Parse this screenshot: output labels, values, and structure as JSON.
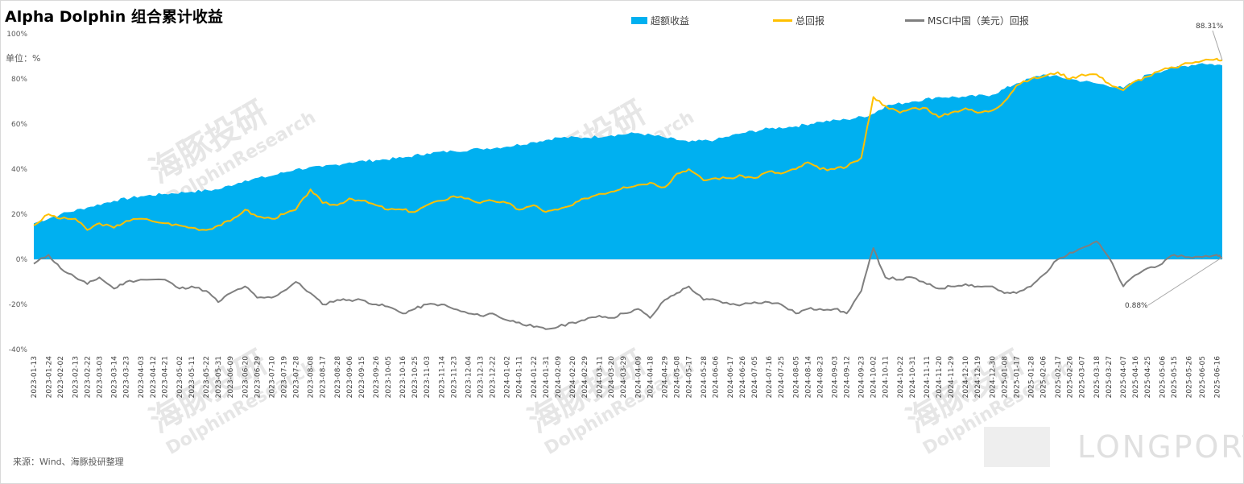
{
  "title": "Alpha Dolphin 组合累计收益",
  "unit_label": "单位：%",
  "source": "来源：Wind、海豚投研整理",
  "watermark": {
    "name": "海豚投研",
    "brand": "DolphinResearch"
  },
  "logo": {
    "text": "LONGPORT"
  },
  "legend": {
    "excess": "超额收益",
    "total": "总回报",
    "msci": "MSCI中国（美元）回报"
  },
  "colors": {
    "excess": "#00b0f0",
    "total": "#ffc000",
    "msci": "#7f7f7f"
  },
  "annotations": [
    {
      "series": "总回报",
      "text": "88.31%"
    },
    {
      "series": "MSCI中国（美元）回报",
      "text": "0.88%"
    }
  ],
  "chart_data": {
    "type": "area",
    "title": "Alpha Dolphin 组合累计收益",
    "ylabel": "单位：%",
    "ylim": [
      -40,
      100
    ],
    "yticks": [
      -40,
      -20,
      0,
      20,
      40,
      60,
      80,
      100
    ],
    "ytick_labels": [
      "-40%",
      "-20%",
      "0%",
      "20%",
      "40%",
      "60%",
      "80%",
      "100%"
    ],
    "grid": false,
    "legend_position": "top",
    "x_tick_labels": [
      "2023-01-13",
      "2023-01-24",
      "2023-02-02",
      "2023-02-13",
      "2023-02-22",
      "2023-03-03",
      "2023-03-14",
      "2023-03-23",
      "2023-04-03",
      "2023-04-12",
      "2023-04-21",
      "2023-05-02",
      "2023-05-11",
      "2023-05-22",
      "2023-05-31",
      "2023-06-09",
      "2023-06-20",
      "2023-06-29",
      "2023-07-10",
      "2023-07-19",
      "2023-07-28",
      "2023-08-08",
      "2023-08-17",
      "2023-08-28",
      "2023-09-06",
      "2023-09-15",
      "2023-09-26",
      "2023-10-05",
      "2023-10-16",
      "2023-10-25",
      "2023-11-03",
      "2023-11-14",
      "2023-11-23",
      "2023-12-04",
      "2023-12-13",
      "2023-12-22",
      "2024-01-02",
      "2024-01-11",
      "2024-01-22",
      "2024-01-31",
      "2024-02-09",
      "2024-02-20",
      "2024-02-29",
      "2024-03-11",
      "2024-03-20",
      "2024-03-29",
      "2024-04-09",
      "2024-04-18",
      "2024-04-29",
      "2024-05-08",
      "2024-05-17",
      "2024-05-28",
      "2024-06-06",
      "2024-06-17",
      "2024-06-26",
      "2024-07-05",
      "2024-07-16",
      "2024-07-25",
      "2024-08-05",
      "2024-08-14",
      "2024-08-23",
      "2024-09-03",
      "2024-09-12",
      "2024-09-23",
      "2024-10-02",
      "2024-10-11",
      "2024-10-22",
      "2024-10-31",
      "2024-11-11",
      "2024-11-20",
      "2024-11-29",
      "2024-12-10",
      "2024-12-19",
      "2024-12-30",
      "2025-01-08",
      "2025-01-17",
      "2025-01-28",
      "2025-02-06",
      "2025-02-17",
      "2025-02-26",
      "2025-03-07",
      "2025-03-18",
      "2025-03-27",
      "2025-04-07",
      "2025-04-16",
      "2025-04-25",
      "2025-05-06",
      "2025-05-15",
      "2025-05-26",
      "2025-06-05",
      "2025-06-16"
    ],
    "series": [
      {
        "name": "超额收益",
        "type": "area",
        "x": [
          "2023-01-13",
          "2023-02-02",
          "2023-02-22",
          "2023-03-14",
          "2023-04-03",
          "2023-04-21",
          "2023-05-11",
          "2023-05-31",
          "2023-06-20",
          "2023-07-10",
          "2023-07-28",
          "2023-08-17",
          "2023-09-06",
          "2023-09-26",
          "2023-10-16",
          "2023-11-03",
          "2023-11-23",
          "2023-12-13",
          "2024-01-02",
          "2024-01-22",
          "2024-02-09",
          "2024-02-29",
          "2024-03-20",
          "2024-04-09",
          "2024-04-29",
          "2024-05-17",
          "2024-06-06",
          "2024-06-26",
          "2024-07-16",
          "2024-08-05",
          "2024-08-23",
          "2024-09-12",
          "2024-09-30",
          "2024-10-11",
          "2024-10-31",
          "2024-11-20",
          "2024-12-10",
          "2024-12-30",
          "2025-01-17",
          "2025-02-06",
          "2025-02-26",
          "2025-03-18",
          "2025-04-07",
          "2025-04-25",
          "2025-05-15",
          "2025-06-05",
          "2025-06-20"
        ],
        "values": [
          16,
          20,
          23,
          26,
          28,
          29,
          30,
          31,
          35,
          37,
          40,
          41,
          43,
          44,
          45,
          47,
          48,
          49,
          50,
          52,
          54,
          54,
          55,
          56,
          54,
          52,
          53,
          56,
          58,
          59,
          61,
          62,
          64,
          68,
          70,
          72,
          72,
          73,
          78,
          82,
          80,
          78,
          76,
          82,
          85,
          87,
          86
        ]
      },
      {
        "name": "总回报",
        "type": "line",
        "x": [
          "2023-01-13",
          "2023-01-24",
          "2023-02-02",
          "2023-02-13",
          "2023-02-22",
          "2023-03-03",
          "2023-03-14",
          "2023-03-23",
          "2023-04-03",
          "2023-04-21",
          "2023-05-02",
          "2023-05-11",
          "2023-05-22",
          "2023-05-31",
          "2023-06-09",
          "2023-06-20",
          "2023-06-29",
          "2023-07-10",
          "2023-07-19",
          "2023-07-28",
          "2023-08-08",
          "2023-08-17",
          "2023-08-28",
          "2023-09-06",
          "2023-09-15",
          "2023-09-26",
          "2023-10-05",
          "2023-10-16",
          "2023-10-25",
          "2023-11-03",
          "2023-11-14",
          "2023-11-23",
          "2023-12-04",
          "2023-12-13",
          "2023-12-22",
          "2024-01-02",
          "2024-01-11",
          "2024-01-22",
          "2024-01-31",
          "2024-02-09",
          "2024-02-20",
          "2024-02-29",
          "2024-03-11",
          "2024-03-20",
          "2024-03-29",
          "2024-04-09",
          "2024-04-18",
          "2024-04-29",
          "2024-05-08",
          "2024-05-17",
          "2024-05-28",
          "2024-06-06",
          "2024-06-17",
          "2024-06-26",
          "2024-07-05",
          "2024-07-16",
          "2024-07-25",
          "2024-08-05",
          "2024-08-14",
          "2024-08-23",
          "2024-09-03",
          "2024-09-12",
          "2024-09-23",
          "2024-10-02",
          "2024-10-11",
          "2024-10-22",
          "2024-10-31",
          "2024-11-11",
          "2024-11-20",
          "2024-11-29",
          "2024-12-10",
          "2024-12-19",
          "2024-12-30",
          "2025-01-08",
          "2025-01-17",
          "2025-01-28",
          "2025-02-06",
          "2025-02-17",
          "2025-02-26",
          "2025-03-07",
          "2025-03-18",
          "2025-03-27",
          "2025-04-07",
          "2025-04-16",
          "2025-04-25",
          "2025-05-06",
          "2025-05-15",
          "2025-05-26",
          "2025-06-05",
          "2025-06-16",
          "2025-06-20"
        ],
        "values": [
          15,
          20,
          18,
          18,
          13,
          16,
          14,
          17,
          18,
          16,
          15,
          14,
          13,
          15,
          17,
          22,
          19,
          18,
          20,
          22,
          31,
          25,
          24,
          27,
          26,
          24,
          22,
          22,
          21,
          24,
          26,
          28,
          27,
          25,
          26,
          25,
          22,
          24,
          21,
          22,
          24,
          27,
          29,
          30,
          32,
          33,
          34,
          32,
          38,
          40,
          35,
          36,
          36,
          37,
          36,
          39,
          38,
          40,
          43,
          40,
          40,
          41,
          45,
          72,
          68,
          65,
          67,
          67,
          63,
          65,
          67,
          65,
          66,
          70,
          77,
          80,
          81,
          83,
          80,
          82,
          82,
          78,
          75,
          79,
          81,
          84,
          85,
          87,
          88,
          89,
          88.31
        ]
      },
      {
        "name": "MSCI中国（美元）回报",
        "type": "line",
        "x": [
          "2023-01-13",
          "2023-01-24",
          "2023-02-02",
          "2023-02-13",
          "2023-02-22",
          "2023-03-03",
          "2023-03-14",
          "2023-03-23",
          "2023-04-03",
          "2023-04-21",
          "2023-05-02",
          "2023-05-11",
          "2023-05-22",
          "2023-05-31",
          "2023-06-09",
          "2023-06-20",
          "2023-06-29",
          "2023-07-10",
          "2023-07-19",
          "2023-07-28",
          "2023-08-08",
          "2023-08-17",
          "2023-08-28",
          "2023-09-06",
          "2023-09-15",
          "2023-09-26",
          "2023-10-05",
          "2023-10-16",
          "2023-10-25",
          "2023-11-03",
          "2023-11-14",
          "2023-11-23",
          "2023-12-04",
          "2023-12-13",
          "2023-12-22",
          "2024-01-02",
          "2024-01-11",
          "2024-01-22",
          "2024-01-31",
          "2024-02-09",
          "2024-02-20",
          "2024-02-29",
          "2024-03-11",
          "2024-03-20",
          "2024-03-29",
          "2024-04-09",
          "2024-04-18",
          "2024-04-29",
          "2024-05-08",
          "2024-05-17",
          "2024-05-28",
          "2024-06-06",
          "2024-06-17",
          "2024-06-26",
          "2024-07-05",
          "2024-07-16",
          "2024-07-25",
          "2024-08-05",
          "2024-08-14",
          "2024-08-23",
          "2024-09-03",
          "2024-09-12",
          "2024-09-23",
          "2024-10-02",
          "2024-10-11",
          "2024-10-22",
          "2024-10-31",
          "2024-11-11",
          "2024-11-20",
          "2024-11-29",
          "2024-12-10",
          "2024-12-19",
          "2024-12-30",
          "2025-01-08",
          "2025-01-17",
          "2025-01-28",
          "2025-02-06",
          "2025-02-17",
          "2025-02-26",
          "2025-03-07",
          "2025-03-18",
          "2025-03-27",
          "2025-04-07",
          "2025-04-16",
          "2025-04-25",
          "2025-05-06",
          "2025-05-15",
          "2025-05-26",
          "2025-06-05",
          "2025-06-16",
          "2025-06-20"
        ],
        "values": [
          -2,
          2,
          -4,
          -8,
          -11,
          -8,
          -13,
          -10,
          -9,
          -9,
          -13,
          -12,
          -14,
          -19,
          -15,
          -12,
          -17,
          -17,
          -14,
          -10,
          -15,
          -20,
          -18,
          -18,
          -18,
          -20,
          -21,
          -24,
          -22,
          -20,
          -20,
          -22,
          -24,
          -25,
          -24,
          -27,
          -28,
          -30,
          -31,
          -30,
          -28,
          -27,
          -25,
          -26,
          -24,
          -22,
          -26,
          -18,
          -15,
          -12,
          -18,
          -18,
          -20,
          -20,
          -19,
          -19,
          -20,
          -24,
          -22,
          -22,
          -22,
          -24,
          -14,
          5,
          -8,
          -9,
          -8,
          -11,
          -13,
          -12,
          -11,
          -12,
          -12,
          -15,
          -15,
          -12,
          -7,
          0,
          3,
          5,
          8,
          1,
          -12,
          -7,
          -4,
          -2,
          2,
          1,
          1,
          2,
          0.88
        ]
      }
    ]
  }
}
